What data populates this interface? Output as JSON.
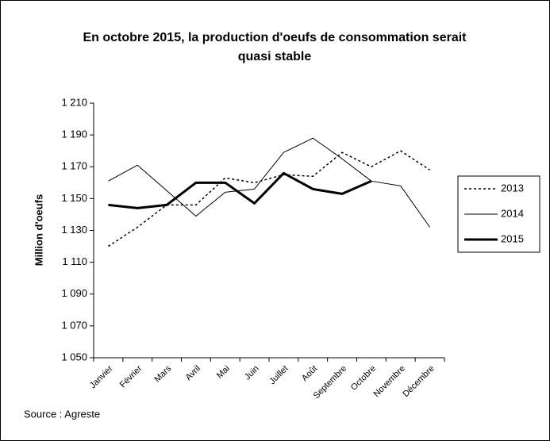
{
  "chart_data": {
    "type": "line",
    "title": [
      "En octobre 2015, la production d'oeufs de consommation serait",
      "quasi stable"
    ],
    "y_label": "Million d'oeufs",
    "source": "Source : Agreste",
    "categories": [
      "Janvier",
      "Février",
      "Mars",
      "Avril",
      "Mai",
      "Juin",
      "Juillet",
      "Août",
      "Septembre",
      "Octobre",
      "Novembre",
      "Décembre"
    ],
    "series": [
      {
        "name": "2013",
        "color": "#000000",
        "dash": "3,3",
        "line_width": 1.5,
        "values": [
          1120,
          1132,
          1146,
          1146,
          1163,
          1160,
          1165,
          1164,
          1179,
          1170,
          1180,
          1168
        ]
      },
      {
        "name": "2014",
        "color": "#000000",
        "dash": "none",
        "line_width": 1,
        "values": [
          1161,
          1171,
          1155,
          1139,
          1154,
          1156,
          1179,
          1188,
          1175,
          1161,
          1158,
          1132
        ]
      },
      {
        "name": "2015",
        "color": "#000000",
        "dash": "none",
        "line_width": 3,
        "values": [
          1146,
          1144,
          1146,
          1160,
          1160,
          1147,
          1166,
          1156,
          1153,
          1161,
          null,
          null
        ]
      }
    ],
    "ylim": [
      1050,
      1210
    ],
    "yticks": [
      {
        "value": 1050,
        "label": "1 050"
      },
      {
        "value": 1070,
        "label": "1 070"
      },
      {
        "value": 1090,
        "label": "1 090"
      },
      {
        "value": 1110,
        "label": "1 110"
      },
      {
        "value": 1130,
        "label": "1 130"
      },
      {
        "value": 1150,
        "label": "1 150"
      },
      {
        "value": 1170,
        "label": "1 170"
      },
      {
        "value": 1190,
        "label": "1 190"
      },
      {
        "value": 1210,
        "label": "1 210"
      }
    ],
    "legend": "right"
  }
}
